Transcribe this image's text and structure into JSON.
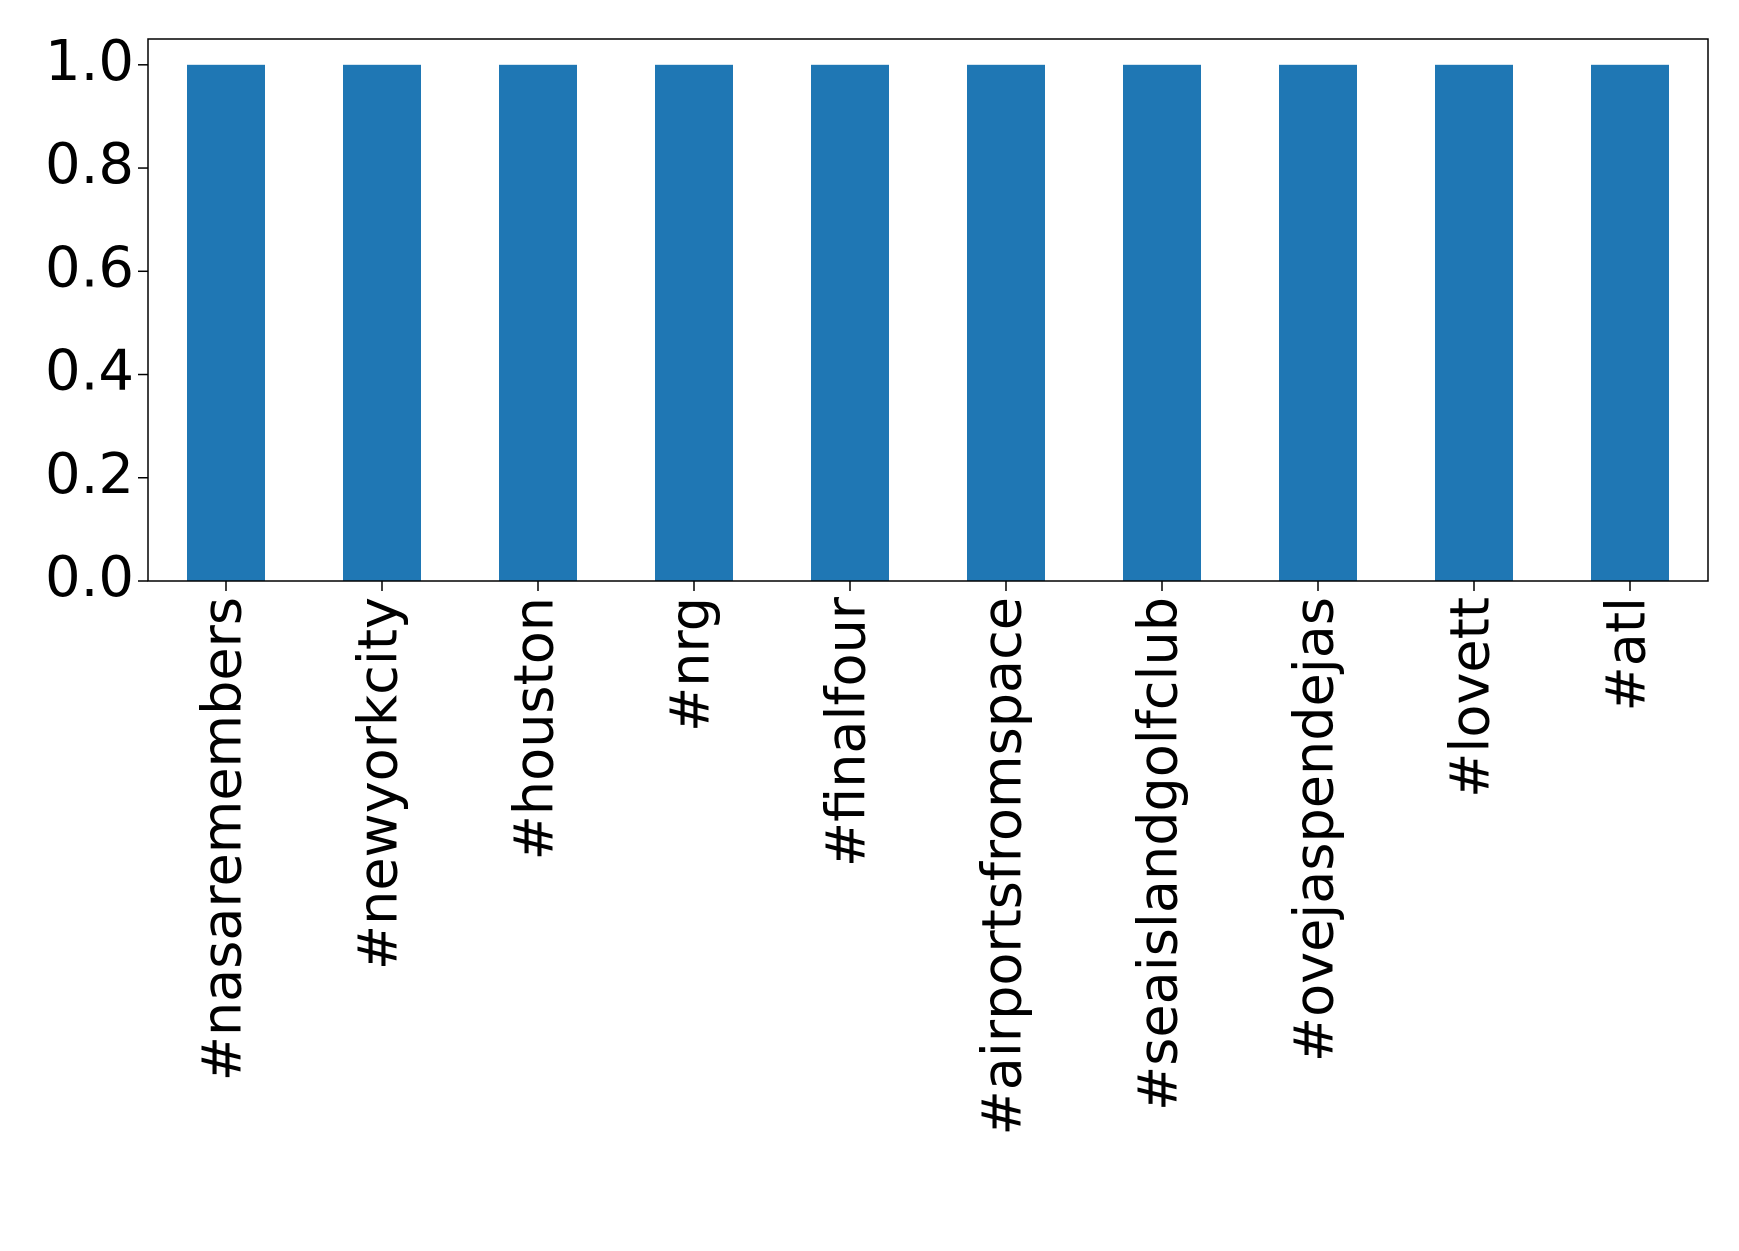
{
  "chart_data": {
    "type": "bar",
    "categories": [
      "#nasaremembers",
      "#newyorkcity",
      "#houston",
      "#nrg",
      "#finalfour",
      "#airportsfromspace",
      "#seaislandgolfclub",
      "#ovejaspendejas",
      "#lovett",
      "#atl"
    ],
    "values": [
      1,
      1,
      1,
      1,
      1,
      1,
      1,
      1,
      1,
      1
    ],
    "color": "#1f77b4",
    "ylim": [
      0,
      1.05
    ],
    "yticks": [
      {
        "value": 0,
        "label": "0.0"
      },
      {
        "value": 0.2,
        "label": "0.2"
      },
      {
        "value": 0.4,
        "label": "0.4"
      },
      {
        "value": 0.6,
        "label": "0.6"
      },
      {
        "value": 0.8,
        "label": "0.8"
      },
      {
        "value": 1,
        "label": "1.0"
      }
    ],
    "grid": false
  }
}
